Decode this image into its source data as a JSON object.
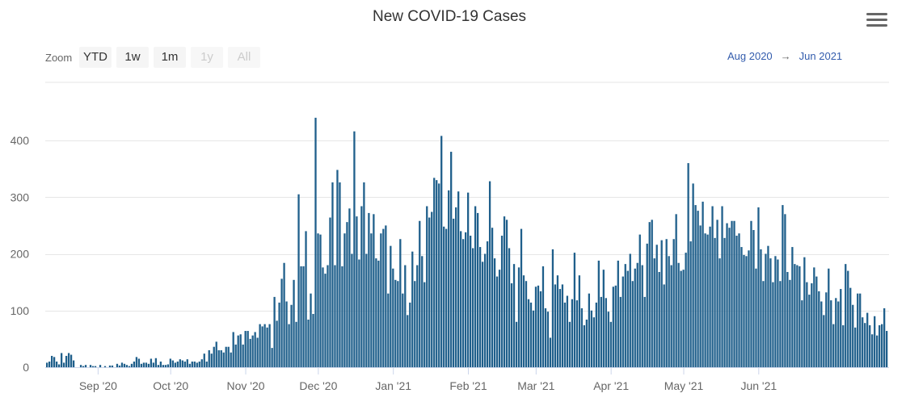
{
  "title": "New COVID-19 Cases",
  "zoom": {
    "label": "Zoom",
    "buttons": [
      {
        "label": "YTD",
        "enabled": true
      },
      {
        "label": "1w",
        "enabled": true
      },
      {
        "label": "1m",
        "enabled": true
      },
      {
        "label": "1y",
        "enabled": false
      },
      {
        "label": "All",
        "enabled": false
      }
    ]
  },
  "range": {
    "from": "Aug 2020",
    "arrow": "→",
    "to": "Jun 2021"
  },
  "icons": {
    "menu": "hamburger-menu-icon"
  },
  "colors": {
    "bar": "#1f5f8b",
    "grid": "#e6e6e6",
    "axis_text": "#666666"
  },
  "chart_data": {
    "type": "bar",
    "title": "New COVID-19 Cases",
    "xlabel": "",
    "ylabel": "",
    "x_start": "2020-08-11",
    "x_end": "2021-06-13",
    "ylim": [
      0,
      440
    ],
    "yticks": [
      0,
      100,
      200,
      300,
      400
    ],
    "xticks": [
      {
        "label": "Sep '20",
        "date": "2020-09-01"
      },
      {
        "label": "Oct '20",
        "date": "2020-10-01"
      },
      {
        "label": "Nov '20",
        "date": "2020-11-01"
      },
      {
        "label": "Dec '20",
        "date": "2020-12-01"
      },
      {
        "label": "Jan '21",
        "date": "2021-01-01"
      },
      {
        "label": "Feb '21",
        "date": "2021-02-01"
      },
      {
        "label": "Mar '21",
        "date": "2021-03-01"
      },
      {
        "label": "Apr '21",
        "date": "2021-04-01"
      },
      {
        "label": "May '21",
        "date": "2021-05-01"
      },
      {
        "label": "Jun '21",
        "date": "2021-06-01"
      }
    ],
    "grid": true,
    "legend": "none",
    "series": [
      {
        "values": [
          8,
          10,
          20,
          18,
          10,
          5,
          25,
          8,
          20,
          25,
          22,
          12,
          0,
          0,
          4,
          2,
          4,
          0,
          4,
          2,
          2,
          0,
          4,
          0,
          2,
          0,
          3,
          3,
          0,
          6,
          3,
          8,
          6,
          4,
          2,
          6,
          10,
          18,
          15,
          6,
          8,
          8,
          6,
          15,
          8,
          16,
          4,
          10,
          4,
          4,
          5,
          15,
          12,
          8,
          10,
          14,
          12,
          10,
          14,
          6,
          10,
          10,
          8,
          10,
          14,
          24,
          10,
          30,
          24,
          36,
          45,
          30,
          30,
          26,
          36,
          36,
          26,
          62,
          40,
          56,
          58,
          40,
          64,
          64,
          50,
          56,
          62,
          52,
          76,
          72,
          76,
          70,
          76,
          34,
          124,
          82,
          114,
          156,
          184,
          116,
          76,
          110,
          154,
          80,
          305,
          178,
          178,
          240,
          84,
          130,
          94,
          440,
          236,
          234,
          176,
          165,
          180,
          264,
          326,
          180,
          348,
          326,
          178,
          236,
          256,
          280,
          200,
          416,
          266,
          190,
          284,
          326,
          200,
          272,
          236,
          270,
          192,
          188,
          236,
          244,
          250,
          130,
          214,
          174,
          154,
          152,
          226,
          130,
          180,
          92,
          114,
          204,
          152,
          180,
          258,
          196,
          150,
          284,
          264,
          274,
          334,
          330,
          324,
          408,
          248,
          244,
          312,
          380,
          262,
          282,
          310,
          240,
          226,
          238,
          308,
          232,
          210,
          284,
          272,
          212,
          186,
          200,
          222,
          328,
          246,
          192,
          160,
          172,
          232,
          266,
          260,
          210,
          148,
          182,
          80,
          176,
          244,
          162,
          152,
          120,
          114,
          100,
          142,
          144,
          134,
          178,
          104,
          98,
          52,
          208,
          146,
          162,
          138,
          146,
          114,
          126,
          80,
          120,
          202,
          118,
          162,
          104,
          74,
          84,
          130,
          100,
          88,
          114,
          188,
          124,
          172,
          122,
          98,
          80,
          142,
          144,
          188,
          124,
          160,
          182,
          170,
          200,
          152,
          174,
          184,
          234,
          180,
          124,
          218,
          256,
          260,
          192,
          216,
          168,
          224,
          146,
          226,
          196,
          180,
          226,
          270,
          184,
          170,
          172,
          202,
          360,
          222,
          324,
          286,
          276,
          250,
          292,
          236,
          234,
          248,
          284,
          228,
          260,
          192,
          284,
          228,
          254,
          246,
          258,
          258,
          232,
          236,
          212,
          198,
          196,
          206,
          258,
          242,
          174,
          282,
          208,
          152,
          200,
          214,
          192,
          150,
          196,
          190,
          152,
          286,
          270,
          168,
          154,
          212,
          182,
          180,
          178,
          118,
          194,
          150,
          128,
          148,
          176,
          160,
          134,
          116,
          92,
          132,
          174,
          118,
          76,
          122,
          116,
          138,
          74,
          182,
          170,
          140,
          110,
          70,
          130,
          130,
          88,
          78,
          96,
          74,
          58,
          90,
          56,
          74,
          76,
          104,
          64
        ]
      }
    ]
  }
}
